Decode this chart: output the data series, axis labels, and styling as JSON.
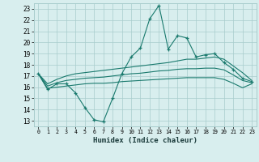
{
  "x_values": [
    0,
    1,
    2,
    3,
    4,
    5,
    6,
    7,
    8,
    9,
    10,
    11,
    12,
    13,
    14,
    15,
    16,
    17,
    18,
    19,
    20,
    21,
    22,
    23
  ],
  "main_line": [
    17.2,
    15.8,
    16.3,
    16.3,
    15.5,
    14.2,
    13.1,
    12.9,
    15.0,
    17.2,
    18.7,
    19.5,
    22.1,
    23.3,
    19.4,
    20.6,
    20.4,
    18.7,
    18.9,
    19.0,
    18.2,
    17.6,
    16.8,
    16.5
  ],
  "upper_band": [
    17.2,
    16.3,
    16.7,
    17.0,
    17.2,
    17.3,
    17.4,
    17.5,
    17.6,
    17.7,
    17.8,
    17.9,
    18.0,
    18.1,
    18.2,
    18.35,
    18.5,
    18.5,
    18.6,
    18.7,
    18.5,
    17.9,
    17.3,
    16.6
  ],
  "middle_band": [
    17.2,
    16.1,
    16.4,
    16.6,
    16.7,
    16.8,
    16.85,
    16.9,
    17.0,
    17.1,
    17.2,
    17.25,
    17.35,
    17.45,
    17.5,
    17.6,
    17.65,
    17.65,
    17.7,
    17.7,
    17.55,
    17.1,
    16.6,
    16.4
  ],
  "lower_band": [
    17.2,
    15.9,
    16.0,
    16.1,
    16.2,
    16.3,
    16.35,
    16.35,
    16.4,
    16.5,
    16.55,
    16.6,
    16.65,
    16.7,
    16.75,
    16.8,
    16.85,
    16.85,
    16.85,
    16.85,
    16.7,
    16.35,
    15.95,
    16.3
  ],
  "line_color": "#1a7a6e",
  "bg_color": "#d8eeee",
  "grid_color": "#a8cccc",
  "xlabel": "Humidex (Indice chaleur)",
  "ylim": [
    12.5,
    23.5
  ],
  "xlim": [
    -0.5,
    23.5
  ],
  "yticks": [
    13,
    14,
    15,
    16,
    17,
    18,
    19,
    20,
    21,
    22,
    23
  ],
  "xticks": [
    0,
    1,
    2,
    3,
    4,
    5,
    6,
    7,
    8,
    9,
    10,
    11,
    12,
    13,
    14,
    15,
    16,
    17,
    18,
    19,
    20,
    21,
    22,
    23
  ]
}
